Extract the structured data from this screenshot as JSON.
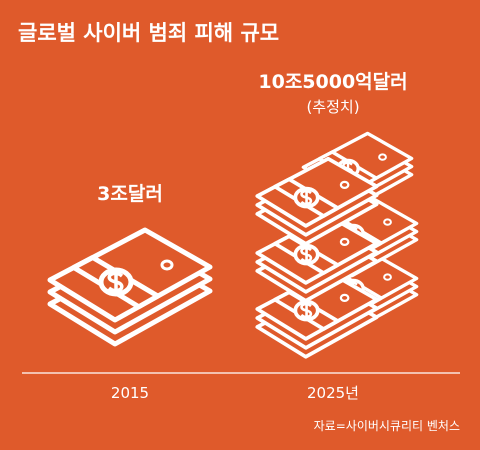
{
  "title": "글로벌 사이버 범죄 피해 규모",
  "items": [
    {
      "label": "3조달러",
      "year": "2015"
    },
    {
      "label": "10조5000억달러",
      "note": "(추정치)",
      "year": "2025년"
    }
  ],
  "source": "자료=사이버시큐리티 벤처스"
}
